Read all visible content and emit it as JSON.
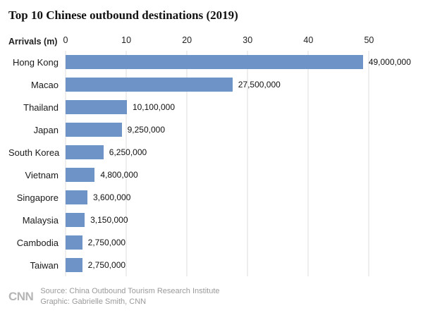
{
  "title": "Top 10 Chinese outbound destinations (2019)",
  "axis": {
    "label": "Arrivals (m)",
    "ticks": [
      0,
      10,
      20,
      30,
      40,
      50
    ]
  },
  "chart_data": {
    "type": "bar",
    "orientation": "horizontal",
    "title": "Top 10 Chinese outbound destinations (2019)",
    "xlabel": "Arrivals (m)",
    "categories": [
      "Hong Kong",
      "Macao",
      "Thailand",
      "Japan",
      "South Korea",
      "Vietnam",
      "Singapore",
      "Malaysia",
      "Cambodia",
      "Taiwan"
    ],
    "values": [
      49,
      27.5,
      10.1,
      9.25,
      6.25,
      4.8,
      3.6,
      3.15,
      2.75,
      2.75
    ],
    "value_labels": [
      "49,000,000",
      "27,500,000",
      "10,100,000",
      "9,250,000",
      "6,250,000",
      "4,800,000",
      "3,600,000",
      "3,150,000",
      "2,750,000",
      "2,750,000"
    ],
    "xlim": [
      0,
      57.5
    ],
    "bar_color": "#6e93c6",
    "grid": true,
    "legend": "none"
  },
  "footer": {
    "logo": "CNN",
    "source": "Source: China Outbound Tourism Research Institute",
    "credit": "Graphic: Gabrielle Smith, CNN"
  }
}
